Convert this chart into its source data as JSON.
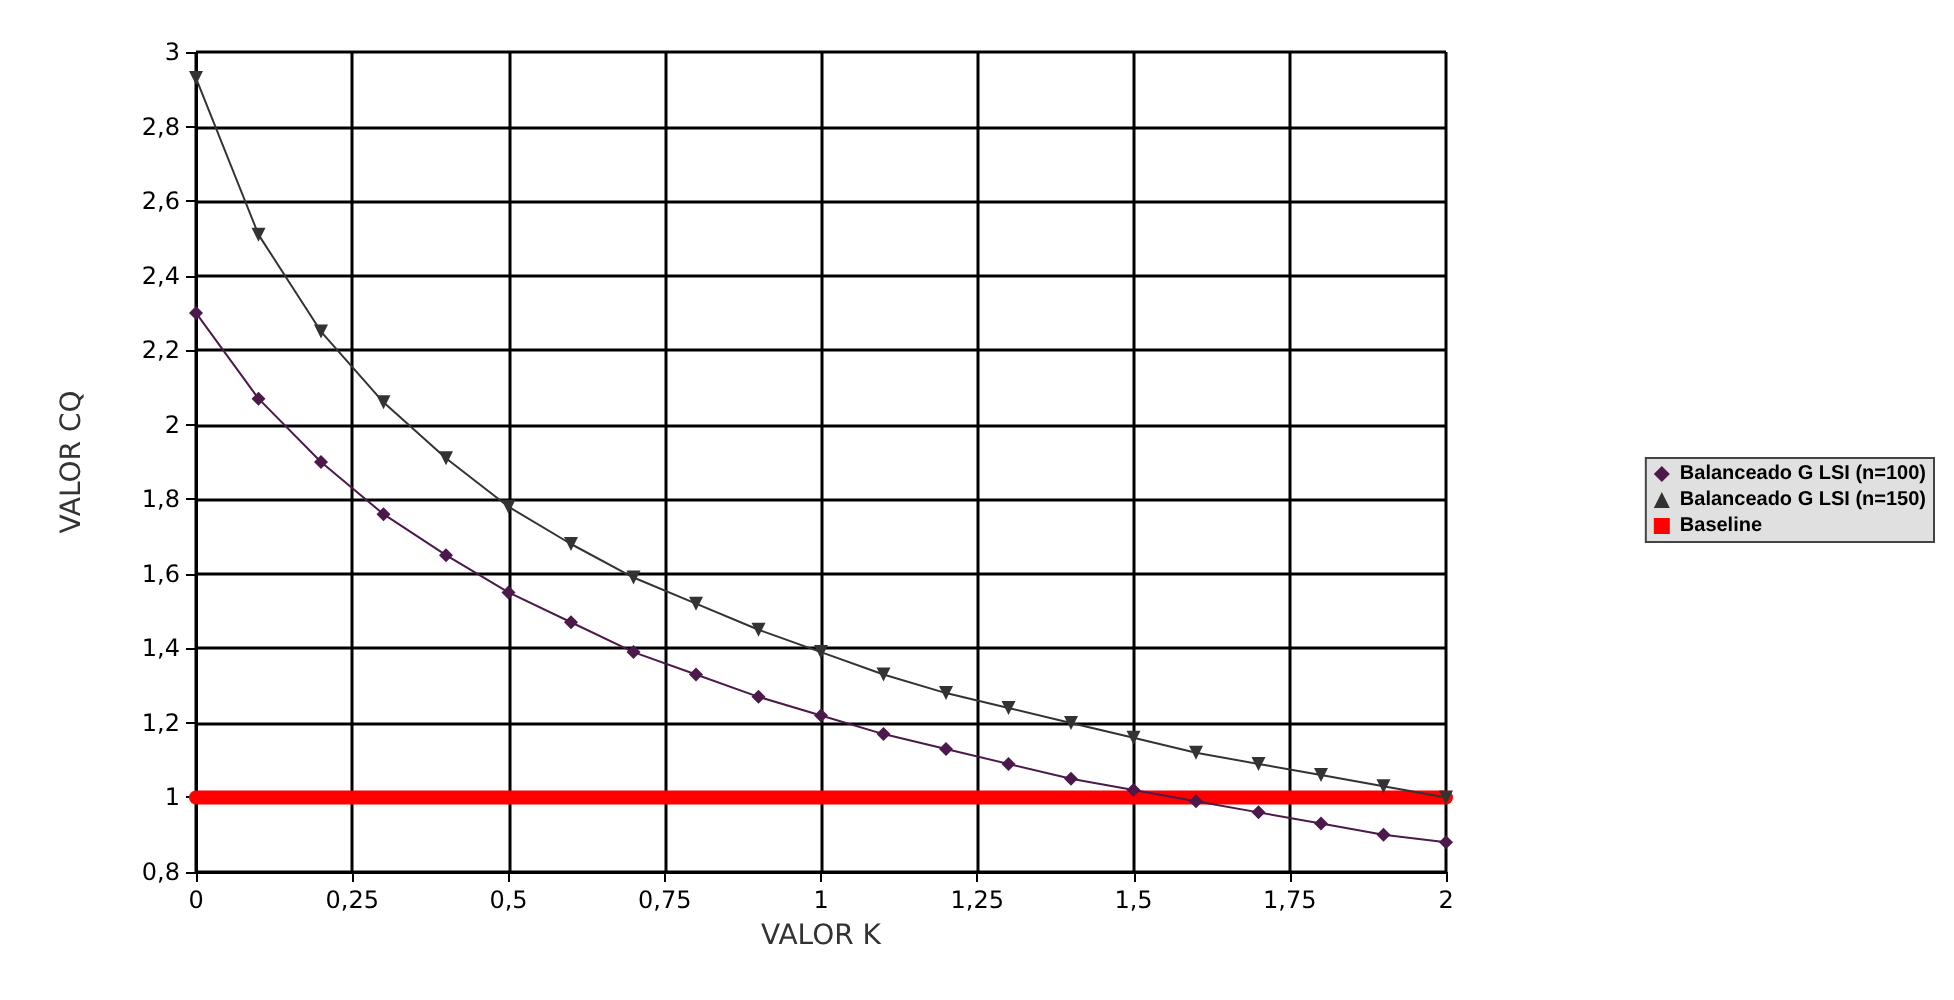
{
  "chart_data": {
    "type": "line",
    "xlabel": "VALOR K",
    "ylabel": "VALOR CQ",
    "legend": "right",
    "grid": true,
    "xlim": [
      0,
      2
    ],
    "ylim": [
      0.8,
      3
    ],
    "xticks": [
      0,
      {
        "value": 0.25,
        "label": "0,25"
      },
      {
        "value": 0.5,
        "label": "0,5"
      },
      {
        "value": 0.75,
        "label": "0,75"
      },
      1,
      {
        "value": 1.25,
        "label": "1,25"
      },
      {
        "value": 1.5,
        "label": "1,5"
      },
      {
        "value": 1.75,
        "label": "1,75"
      },
      2
    ],
    "yticks": [
      {
        "value": 0.8,
        "label": "0,8"
      },
      1,
      {
        "value": 1.2,
        "label": "1,2"
      },
      {
        "value": 1.4,
        "label": "1,4"
      },
      {
        "value": 1.6,
        "label": "1,6"
      },
      {
        "value": 1.8,
        "label": "1,8"
      },
      2,
      {
        "value": 2.2,
        "label": "2,2"
      },
      {
        "value": 2.4,
        "label": "2,4"
      },
      {
        "value": 2.6,
        "label": "2,6"
      },
      {
        "value": 2.8,
        "label": "2,8"
      },
      3
    ],
    "x": [
      0,
      0.1,
      0.2,
      0.3,
      0.4,
      0.5,
      0.6,
      0.7,
      0.8,
      0.9,
      1,
      1.1,
      1.2,
      1.3,
      1.4,
      1.5,
      1.6,
      1.7,
      1.8,
      1.9,
      2
    ],
    "series": [
      {
        "name": "Balanceado G LSI (n=100)",
        "color": "#4b1a4b",
        "marker": "diamond",
        "values": [
          2.3,
          2.07,
          1.9,
          1.76,
          1.65,
          1.55,
          1.47,
          1.39,
          1.33,
          1.27,
          1.22,
          1.17,
          1.13,
          1.09,
          1.05,
          1.02,
          0.99,
          0.96,
          0.93,
          0.9,
          0.88
        ]
      },
      {
        "name": "Balanceado G LSI (n=150)",
        "color": "#333333",
        "marker": "triangle",
        "values": [
          2.93,
          2.51,
          2.25,
          2.06,
          1.91,
          1.78,
          1.68,
          1.59,
          1.52,
          1.45,
          1.39,
          1.33,
          1.28,
          1.24,
          1.2,
          1.16,
          1.12,
          1.09,
          1.06,
          1.03,
          1.0
        ]
      },
      {
        "name": "Baseline",
        "color": "#ff0000",
        "marker": "none",
        "x": [
          0,
          2
        ],
        "values": [
          1,
          1
        ]
      }
    ]
  }
}
